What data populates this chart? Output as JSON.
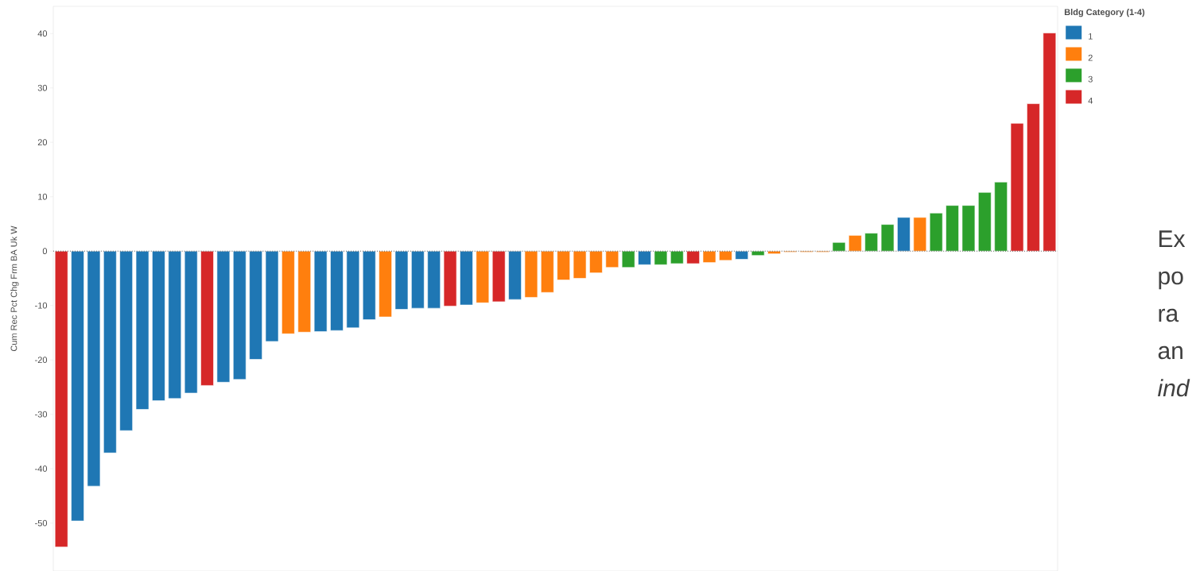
{
  "chart_data": {
    "type": "bar",
    "ylabel": "Cum Rec Pct Chg Frm BA Uk W",
    "legend_title": "Bldg Category (1-4)",
    "legend": "top right",
    "categories": [
      null,
      null,
      null,
      null,
      null,
      null,
      null,
      null,
      null,
      null,
      null,
      null,
      null,
      null,
      null,
      null,
      null,
      null,
      null,
      null,
      null,
      null,
      null,
      null,
      null,
      null,
      null,
      null,
      null,
      null,
      null,
      null,
      null,
      null,
      null,
      null,
      null,
      null,
      null,
      null,
      null,
      null,
      null,
      null,
      null,
      null,
      null,
      null,
      null,
      null,
      null,
      null,
      null,
      null,
      null,
      null,
      null,
      null,
      null,
      null,
      null,
      null
    ],
    "series": [
      {
        "name": "1",
        "color": "#1f77b4",
        "values": [
          null,
          -49.6,
          -43.2,
          -37.1,
          -33,
          -29.1,
          -27.5,
          -27.1,
          -26.1,
          null,
          -24.1,
          -23.6,
          -19.9,
          -16.6,
          null,
          null,
          -14.8,
          -14.6,
          -14.1,
          -12.6,
          null,
          -10.7,
          -10.5,
          -10.5,
          null,
          -9.9,
          null,
          null,
          -8.9,
          null,
          null,
          null,
          null,
          null,
          null,
          null,
          -2.5,
          null,
          null,
          null,
          null,
          null,
          -1.5,
          null,
          null,
          null,
          null,
          null,
          null,
          null,
          null,
          null,
          6.2,
          null,
          null,
          null,
          null,
          null,
          null,
          null,
          null,
          null
        ]
      },
      {
        "name": "2",
        "color": "#ff7f0e",
        "values": [
          null,
          null,
          null,
          null,
          null,
          null,
          null,
          null,
          null,
          null,
          null,
          null,
          null,
          null,
          -15.2,
          -14.9,
          null,
          null,
          null,
          null,
          -12.1,
          null,
          null,
          null,
          null,
          null,
          -9.5,
          null,
          null,
          -8.5,
          -7.6,
          -5.3,
          -5,
          -4,
          -3,
          null,
          null,
          null,
          null,
          null,
          -2.1,
          -1.7,
          null,
          null,
          -0.5,
          -0.2,
          -0.2,
          -0.2,
          null,
          2.9,
          null,
          null,
          null,
          6.2,
          null,
          null,
          null,
          null,
          null,
          null,
          null,
          null
        ]
      },
      {
        "name": "3",
        "color": "#2ca02c",
        "values": [
          null,
          null,
          null,
          null,
          null,
          null,
          null,
          null,
          null,
          null,
          null,
          null,
          null,
          null,
          null,
          null,
          null,
          null,
          null,
          null,
          null,
          null,
          null,
          null,
          null,
          null,
          null,
          null,
          null,
          null,
          null,
          null,
          null,
          null,
          null,
          -3,
          null,
          -2.5,
          -2.3,
          null,
          null,
          null,
          null,
          -0.8,
          null,
          null,
          null,
          null,
          1.6,
          null,
          3.3,
          4.9,
          null,
          null,
          7,
          8.4,
          8.4,
          10.8,
          12.7,
          null,
          null,
          null
        ]
      },
      {
        "name": "4",
        "color": "#d62728",
        "values": [
          -54.4,
          null,
          null,
          null,
          null,
          null,
          null,
          null,
          null,
          -24.7,
          null,
          null,
          null,
          null,
          null,
          null,
          null,
          null,
          null,
          null,
          null,
          null,
          null,
          null,
          -10.1,
          null,
          null,
          -9.3,
          null,
          null,
          null,
          null,
          null,
          null,
          null,
          null,
          null,
          null,
          null,
          -2.3,
          null,
          null,
          null,
          null,
          null,
          null,
          null,
          null,
          null,
          null,
          null,
          null,
          null,
          null,
          null,
          null,
          null,
          null,
          null,
          23.5,
          27.1,
          40.1
        ]
      }
    ],
    "ylim": [
      -58.8,
      45
    ],
    "yticks": [
      -50,
      -40,
      -30,
      -20,
      -10,
      0,
      10,
      20,
      30,
      40
    ],
    "ref_lines": [
      {
        "axis": "y",
        "value": 0,
        "line_style": "dotted",
        "color": "#555555"
      }
    ],
    "annotations": [
      "Ex",
      "po",
      "ra",
      "an",
      "ind"
    ]
  }
}
